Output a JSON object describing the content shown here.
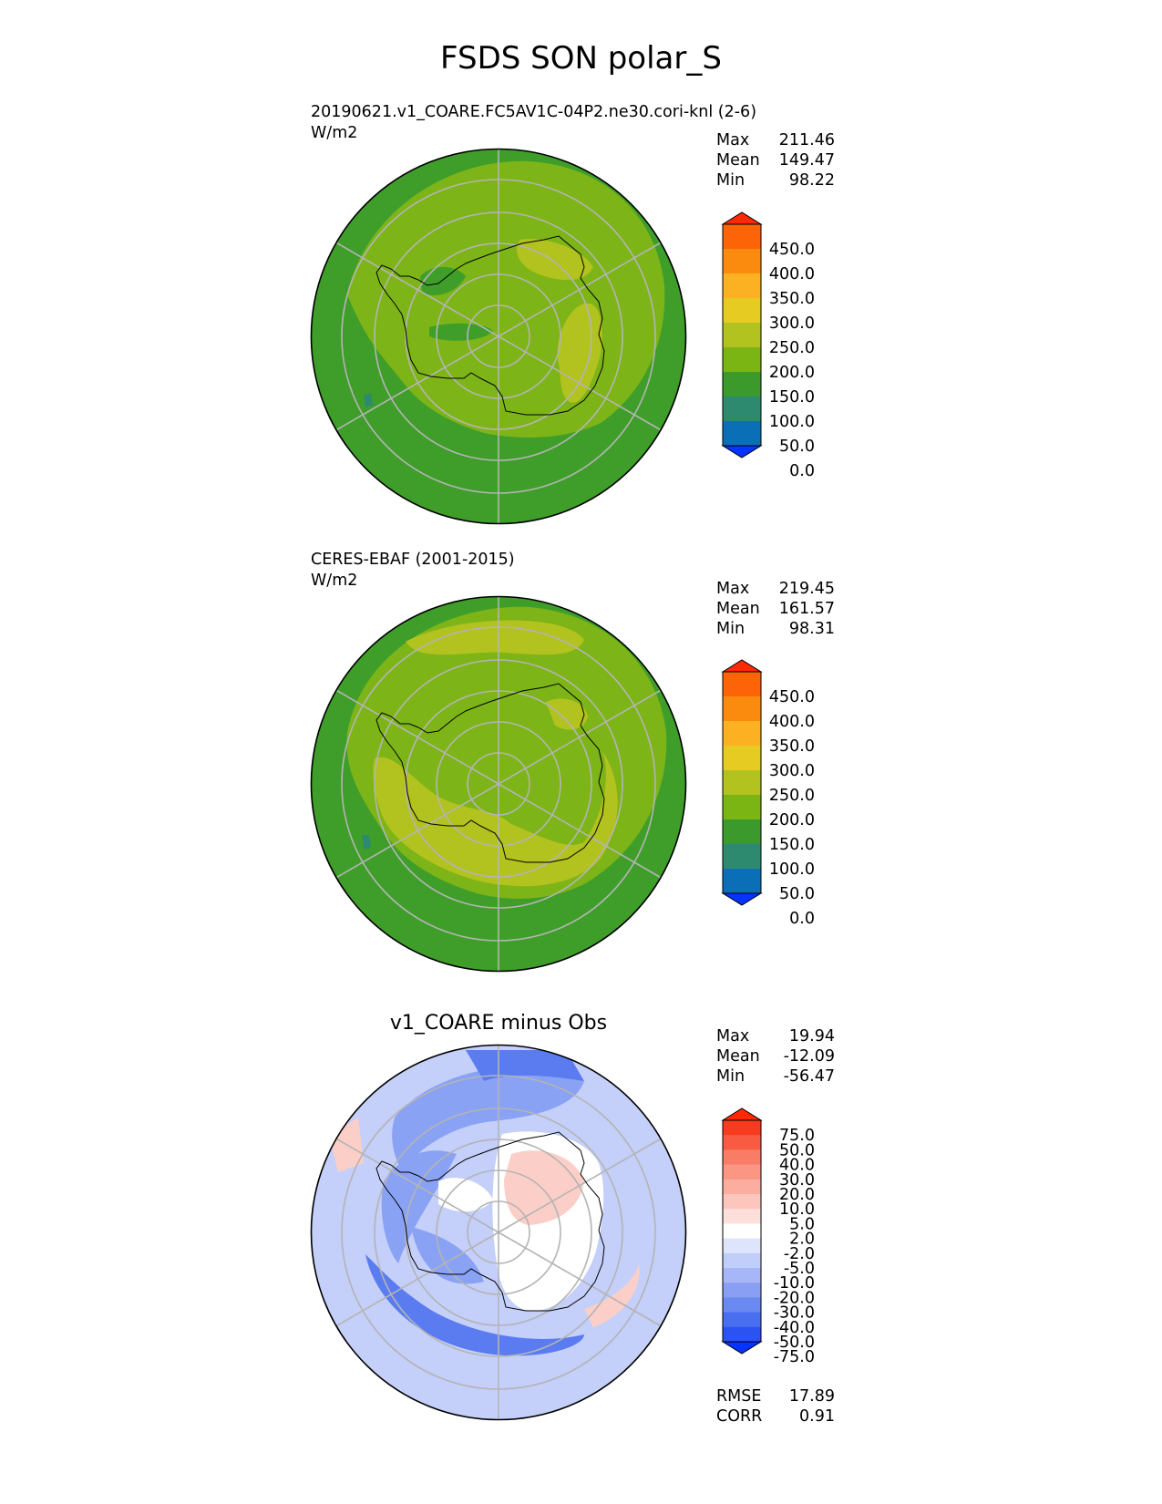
{
  "figure_title": "FSDS SON polar_S",
  "panels": [
    {
      "caption": "20190621.v1_COARE.FC5AV1C-04P2.ne30.cori-knl (2-6)",
      "units": "W/m2",
      "stats": {
        "max_label": "Max",
        "max": "211.46",
        "mean_label": "Mean",
        "mean": "149.47",
        "min_label": "Min",
        "min": "98.22"
      }
    },
    {
      "caption": "CERES-EBAF (2001-2015)",
      "units": "W/m2",
      "stats": {
        "max_label": "Max",
        "max": "219.45",
        "mean_label": "Mean",
        "mean": "161.57",
        "min_label": "Min",
        "min": "98.31"
      }
    },
    {
      "caption": "v1_COARE minus Obs",
      "stats": {
        "max_label": "Max",
        "max": "19.94",
        "mean_label": "Mean",
        "mean": "-12.09",
        "min_label": "Min",
        "min": "-56.47"
      },
      "metrics": {
        "rmse_label": "RMSE",
        "rmse": "17.89",
        "corr_label": "CORR",
        "corr": "0.91"
      }
    }
  ],
  "chart_data": [
    {
      "type": "heatmap",
      "projection": "south polar stereographic",
      "variable": "FSDS",
      "season": "SON",
      "title": "20190621.v1_COARE.FC5AV1C-04P2.ne30.cori-knl (2-6)",
      "units": "W/m2",
      "stats": {
        "max": 211.46,
        "mean": 149.47,
        "min": 98.22
      },
      "colorbar": {
        "levels": [
          0,
          50,
          100,
          150,
          200,
          250,
          300,
          350,
          400,
          450
        ],
        "tick_labels": [
          "450.0",
          "400.0",
          "350.0",
          "300.0",
          "250.0",
          "200.0",
          "150.0",
          "100.0",
          "50.0",
          "0.0"
        ],
        "colors": [
          "#0533ff",
          "#0a6fb7",
          "#2e8a6e",
          "#3c9a2c",
          "#7bb514",
          "#b2c21e",
          "#e5cb22",
          "#fbb121",
          "#fb8b0e",
          "#fd6408",
          "#fe2a04"
        ],
        "extend": "both"
      },
      "field_colors": {
        "ocean": "#3f9e2a",
        "band": "#7db417",
        "high": "#b2c21e",
        "low": "#2e8a6e"
      }
    },
    {
      "type": "heatmap",
      "projection": "south polar stereographic",
      "variable": "FSDS",
      "season": "SON",
      "title": "CERES-EBAF (2001-2015)",
      "units": "W/m2",
      "stats": {
        "max": 219.45,
        "mean": 161.57,
        "min": 98.31
      },
      "colorbar": {
        "levels": [
          0,
          50,
          100,
          150,
          200,
          250,
          300,
          350,
          400,
          450
        ],
        "tick_labels": [
          "450.0",
          "400.0",
          "350.0",
          "300.0",
          "250.0",
          "200.0",
          "150.0",
          "100.0",
          "50.0",
          "0.0"
        ],
        "colors": [
          "#0533ff",
          "#0a6fb7",
          "#2e8a6e",
          "#3c9a2c",
          "#7bb514",
          "#b2c21e",
          "#e5cb22",
          "#fbb121",
          "#fb8b0e",
          "#fd6408",
          "#fe2a04"
        ],
        "extend": "both"
      },
      "field_colors": {
        "ocean": "#3f9e2a",
        "band": "#7db417",
        "high": "#b2c21e",
        "low": "#2e8a6e"
      }
    },
    {
      "type": "heatmap",
      "projection": "south polar stereographic",
      "title": "v1_COARE minus Obs",
      "stats": {
        "max": 19.94,
        "mean": -12.09,
        "min": -56.47,
        "rmse": 17.89,
        "corr": 0.91
      },
      "colorbar": {
        "levels": [
          -75,
          -50,
          -40,
          -30,
          -20,
          -10,
          -5,
          -2,
          2,
          5,
          10,
          20,
          30,
          40,
          50,
          75
        ],
        "tick_labels": [
          "75.0",
          "50.0",
          "40.0",
          "30.0",
          "20.0",
          "10.0",
          "5.0",
          "2.0",
          "-2.0",
          "-5.0",
          "-10.0",
          "-20.0",
          "-30.0",
          "-40.0",
          "-50.0",
          "-75.0"
        ],
        "colors": [
          "#0533ff",
          "#2a53f2",
          "#4a6ef0",
          "#6a8af2",
          "#899ff4",
          "#a6b6f6",
          "#c2cefa",
          "#dde4fc",
          "#ffffff",
          "#fde0dc",
          "#fcc6bd",
          "#fbae9f",
          "#fa9683",
          "#f97c66",
          "#f85b42",
          "#f73b1e",
          "#ff2a04"
        ],
        "extend": "both"
      },
      "field_colors": {
        "background": "#c4cffa",
        "strong_negative": "#5a7cf0",
        "mid_negative": "#8aa2f4",
        "positive": "#fbcfc7",
        "neutral": "#ffffff"
      }
    }
  ]
}
